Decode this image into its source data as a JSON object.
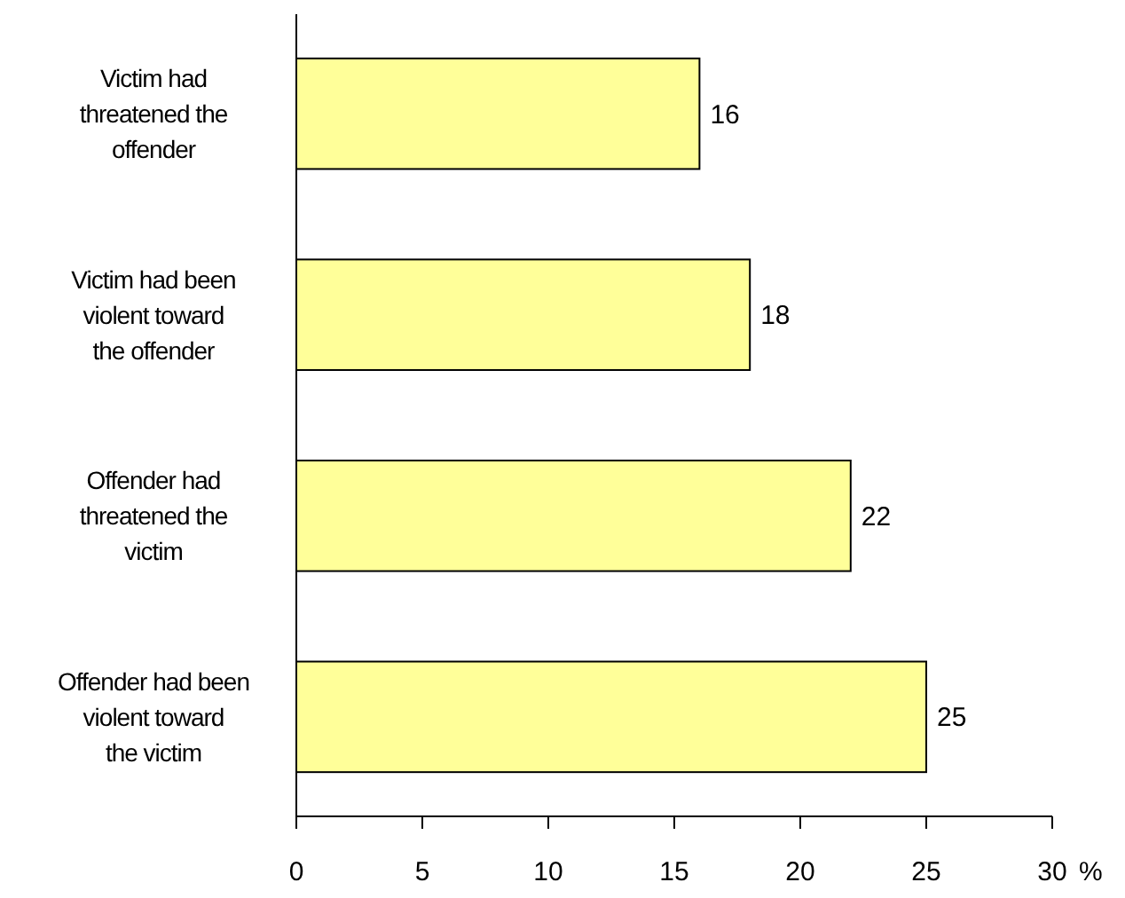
{
  "chart_data": {
    "type": "bar",
    "orientation": "horizontal",
    "xlabel": "%",
    "categories": [
      "Victim had threatened the offender",
      "Victim had been violent toward the offender",
      "Offender had threatened the victim",
      "Offender had been violent toward the victim"
    ],
    "values": [
      16,
      18,
      22,
      25
    ],
    "color": "#ffff99",
    "xlim": [
      0,
      30
    ],
    "xticks": [
      0,
      5,
      10,
      15,
      20,
      25,
      30
    ],
    "grid": false,
    "data_labels": true
  }
}
